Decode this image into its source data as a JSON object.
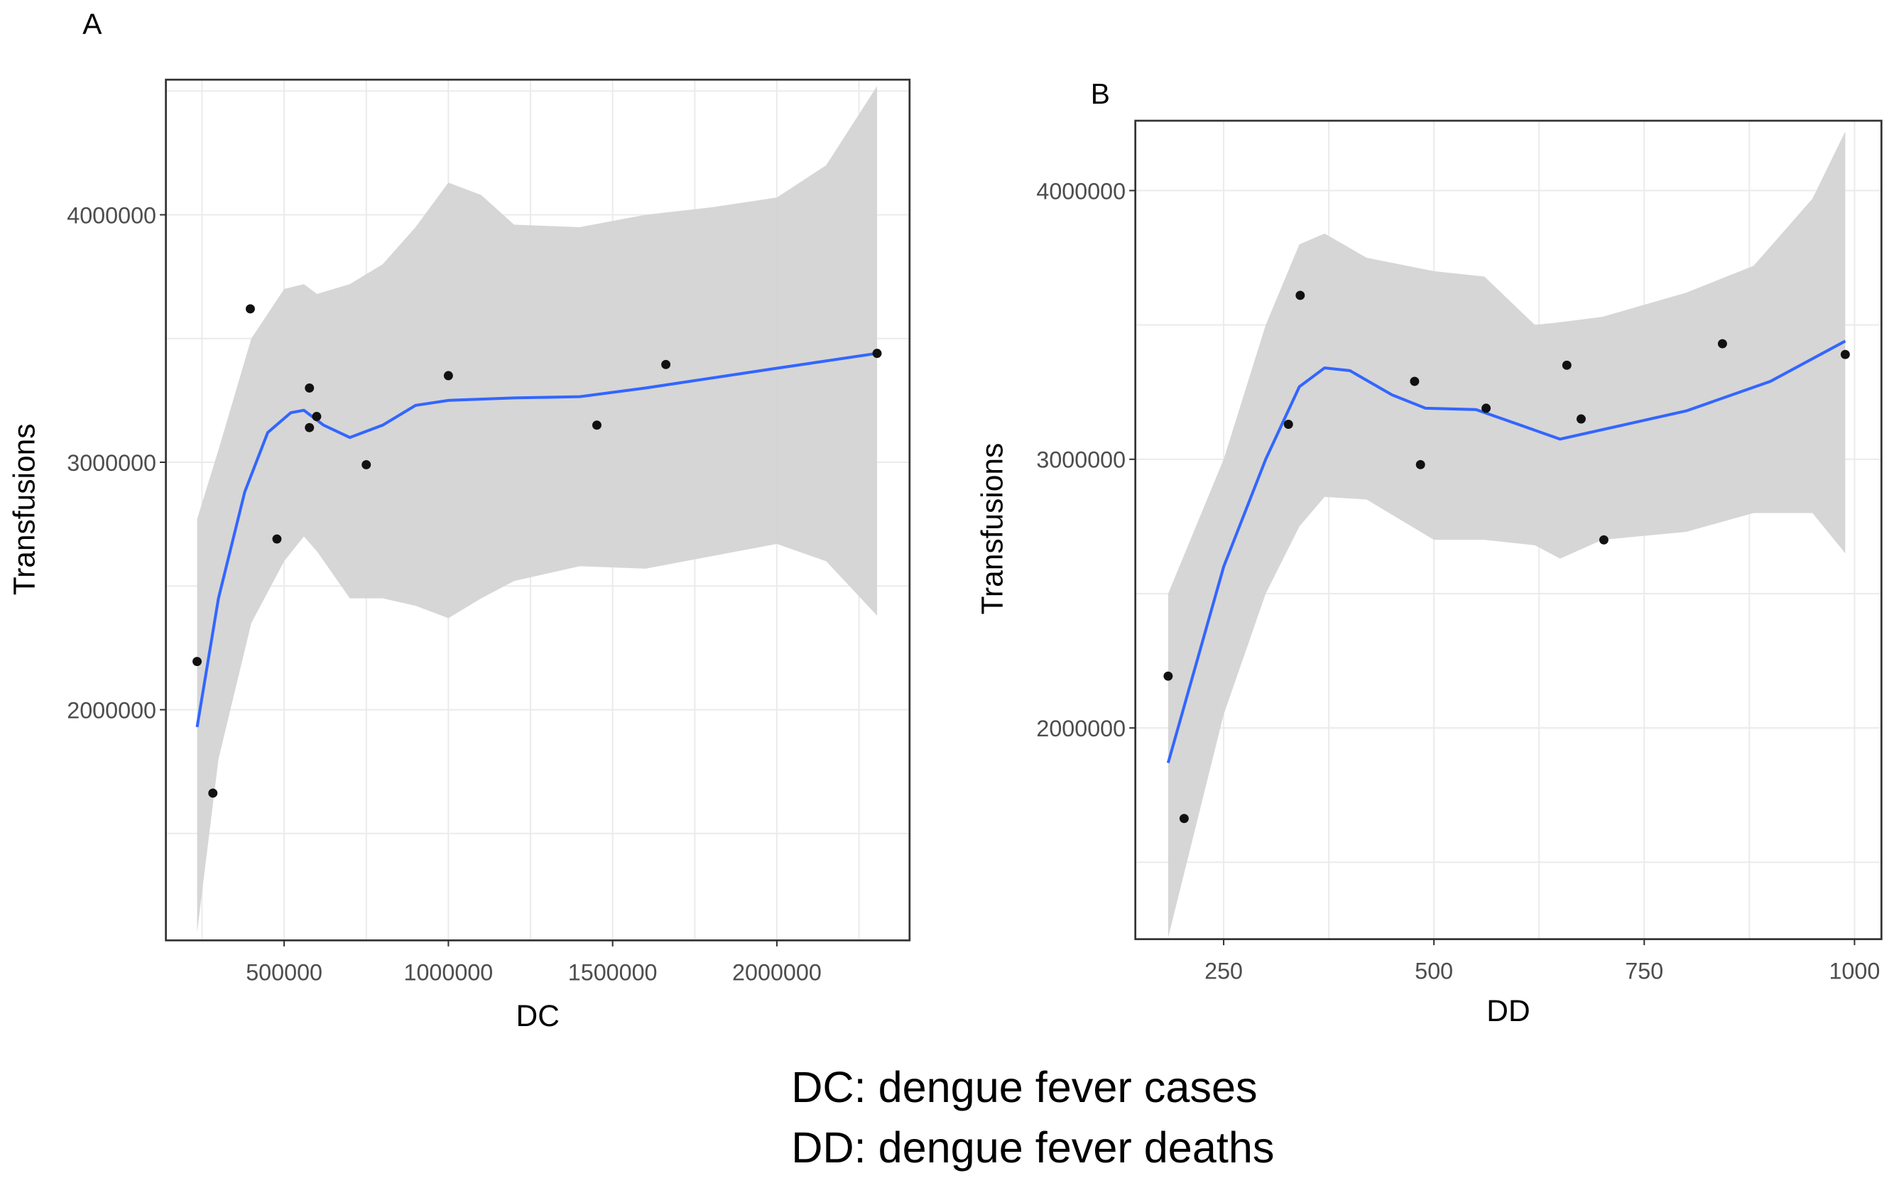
{
  "chart_data": [
    {
      "type": "scatter",
      "panel_label": "A",
      "xlabel": "DC",
      "ylabel": "Transfusions",
      "xlim": [
        140000,
        2404000
      ],
      "ylim": [
        1068000,
        4546000
      ],
      "xticks": [
        500000,
        1000000,
        1500000,
        2000000
      ],
      "xtick_labels": [
        "500000",
        "1000000",
        "1500000",
        "2000000"
      ],
      "yticks": [
        2000000,
        3000000,
        4000000
      ],
      "ytick_labels": [
        "2000000",
        "3000000",
        "4000000"
      ],
      "grid": true,
      "points": [
        [
          235000,
          2195000
        ],
        [
          283000,
          1663000
        ],
        [
          397000,
          3620000
        ],
        [
          478000,
          2690000
        ],
        [
          577000,
          3300000
        ],
        [
          577000,
          3140000
        ],
        [
          599000,
          3185000
        ],
        [
          750000,
          2990000
        ],
        [
          1000000,
          3350000
        ],
        [
          1452000,
          3150000
        ],
        [
          1662000,
          3395000
        ],
        [
          2305000,
          3440000
        ]
      ],
      "smooth": {
        "x": [
          235000,
          300000,
          380000,
          450000,
          520000,
          560000,
          620000,
          700000,
          800000,
          900000,
          1000000,
          1200000,
          1400000,
          1600000,
          1800000,
          2000000,
          2305000
        ],
        "y": [
          1930000,
          2450000,
          2880000,
          3120000,
          3200000,
          3210000,
          3150000,
          3100000,
          3150000,
          3230000,
          3250000,
          3260000,
          3265000,
          3300000,
          3340000,
          3380000,
          3440000
        ]
      },
      "ribbon": {
        "x": [
          235000,
          300000,
          400000,
          500000,
          560000,
          600000,
          700000,
          800000,
          900000,
          1000000,
          1100000,
          1200000,
          1400000,
          1600000,
          1800000,
          2000000,
          2150000,
          2305000
        ],
        "upper": [
          2770000,
          3050000,
          3500000,
          3700000,
          3720000,
          3680000,
          3720000,
          3800000,
          3950000,
          4130000,
          4080000,
          3960000,
          3950000,
          4000000,
          4030000,
          4070000,
          4200000,
          4520000
        ],
        "lower": [
          1100000,
          1800000,
          2350000,
          2600000,
          2700000,
          2640000,
          2450000,
          2450000,
          2420000,
          2370000,
          2450000,
          2520000,
          2580000,
          2570000,
          2620000,
          2670000,
          2600000,
          2380000
        ]
      }
    },
    {
      "type": "scatter",
      "panel_label": "B",
      "xlabel": "DD",
      "ylabel": "Transfusions",
      "xlim": [
        145,
        1032
      ],
      "ylim": [
        1214000,
        4260000
      ],
      "xticks": [
        250,
        500,
        750,
        1000
      ],
      "xtick_labels": [
        "250",
        "500",
        "750",
        "1000"
      ],
      "yticks": [
        2000000,
        3000000,
        4000000
      ],
      "ytick_labels": [
        "2000000",
        "3000000",
        "4000000"
      ],
      "grid": true,
      "points": [
        [
          184,
          2193000
        ],
        [
          203,
          1663000
        ],
        [
          327,
          3130000
        ],
        [
          341,
          3610000
        ],
        [
          477,
          3290000
        ],
        [
          484,
          2980000
        ],
        [
          562,
          3190000
        ],
        [
          658,
          3350000
        ],
        [
          675,
          3150000
        ],
        [
          702,
          2700000
        ],
        [
          843,
          3430000
        ],
        [
          989,
          3390000
        ]
      ],
      "smooth": {
        "x": [
          184,
          250,
          300,
          340,
          370,
          400,
          450,
          490,
          550,
          600,
          650,
          700,
          800,
          900,
          989
        ],
        "y": [
          1870000,
          2600000,
          3000000,
          3270000,
          3340000,
          3330000,
          3240000,
          3190000,
          3185000,
          3130000,
          3075000,
          3110000,
          3180000,
          3290000,
          3440000
        ]
      },
      "ribbon": {
        "x": [
          184,
          250,
          300,
          340,
          370,
          420,
          500,
          560,
          620,
          650,
          700,
          800,
          880,
          950,
          989
        ],
        "upper": [
          2500000,
          3000000,
          3500000,
          3800000,
          3840000,
          3750000,
          3700000,
          3680000,
          3500000,
          3510000,
          3530000,
          3620000,
          3720000,
          3970000,
          4220000
        ],
        "lower": [
          1220000,
          2050000,
          2500000,
          2750000,
          2860000,
          2850000,
          2700000,
          2700000,
          2680000,
          2630000,
          2700000,
          2730000,
          2800000,
          2800000,
          2650000
        ]
      }
    }
  ],
  "caption": {
    "line1": "DC: dengue fever cases",
    "line2": "DD: dengue fever deaths"
  },
  "colors": {
    "smooth_line": "#3366ff",
    "ribbon": "#d4d4d4",
    "points": "#111111",
    "grid": "#ebebeb",
    "panel_border": "#333333"
  }
}
